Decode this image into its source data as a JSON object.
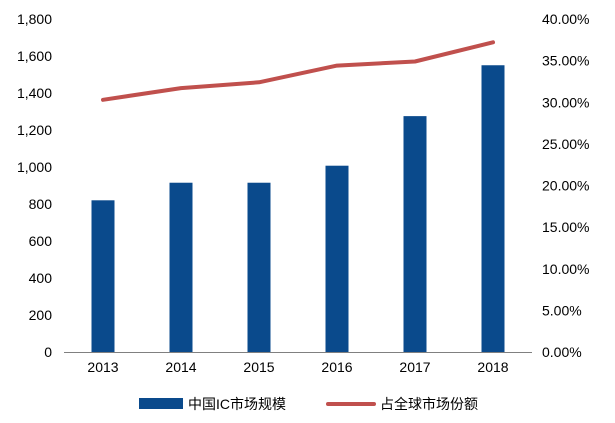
{
  "chart_data": {
    "type": "bar",
    "title": "",
    "xlabel": "",
    "ylabel": "",
    "categories": [
      "2013",
      "2014",
      "2015",
      "2016",
      "2017",
      "2018"
    ],
    "series": [
      {
        "name": "中国IC市场规模",
        "type": "bar",
        "axis": "left",
        "color": "#0a4a8c",
        "values": [
          820,
          915,
          915,
          1007,
          1275,
          1550
        ]
      },
      {
        "name": "占全球市场份额",
        "type": "line",
        "axis": "right",
        "color": "#c0504d",
        "values": [
          30.3,
          31.7,
          32.4,
          34.4,
          34.9,
          37.2
        ]
      }
    ],
    "y_left": {
      "min": 0,
      "max": 1800,
      "step": 200,
      "tick_labels": [
        "0",
        "200",
        "400",
        "600",
        "800",
        "1,000",
        "1,200",
        "1,400",
        "1,600",
        "1,800"
      ]
    },
    "y_right": {
      "min": 0,
      "max": 40,
      "step": 5,
      "unit": "%",
      "tick_labels": [
        "0.00%",
        "5.00%",
        "10.00%",
        "15.00%",
        "20.00%",
        "25.00%",
        "30.00%",
        "35.00%",
        "40.00%"
      ]
    },
    "grid": false,
    "legend_position": "bottom"
  }
}
